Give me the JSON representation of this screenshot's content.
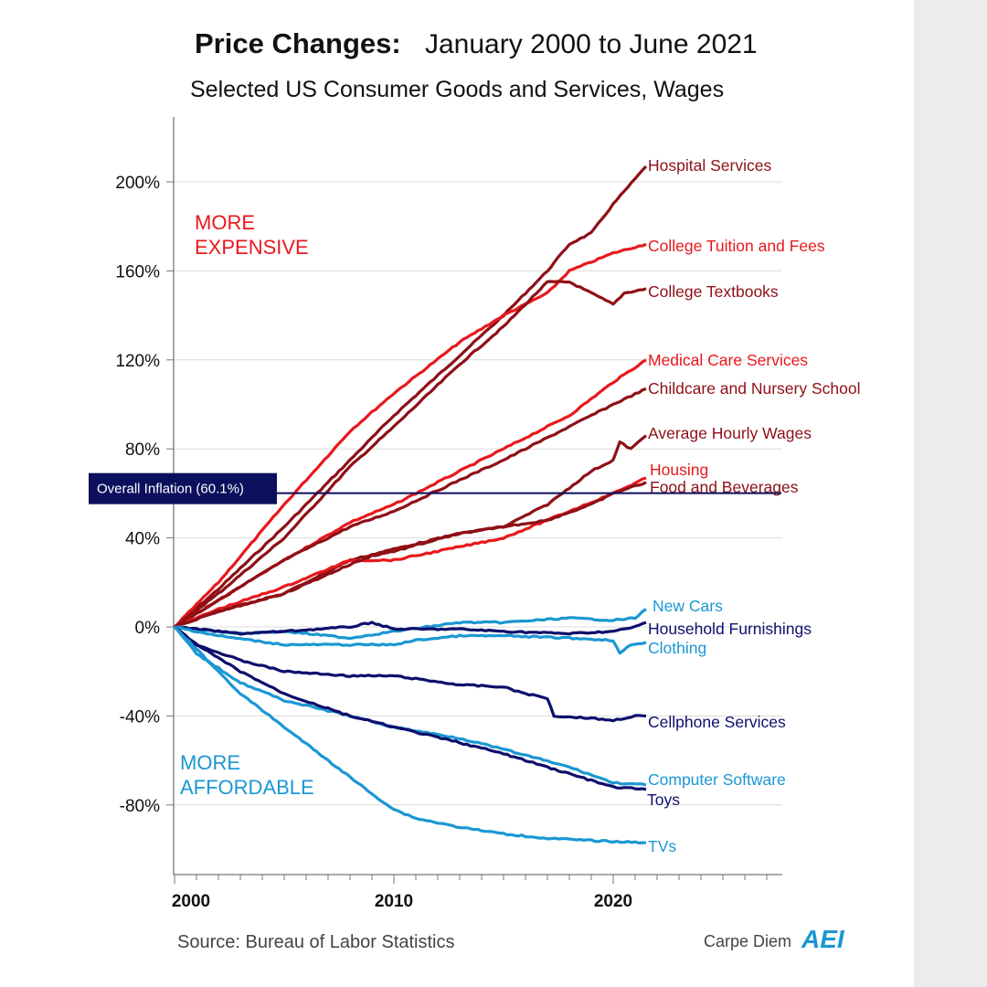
{
  "chart_data": {
    "type": "line",
    "title_bold": "Price Changes:",
    "title_rest": "January 2000 to June 2021",
    "subtitle": "Selected US Consumer Goods and Services, Wages",
    "xlabel": "",
    "ylabel": "",
    "xlim": [
      2000,
      2027.7
    ],
    "ylim": [
      -110,
      230
    ],
    "x_ticks": [
      "2000",
      "2010",
      "2020"
    ],
    "y_ticks": [
      "200%",
      "160%",
      "120%",
      "80%",
      "40%",
      "0%",
      "-40%",
      "-80%"
    ],
    "y_tick_values": [
      200,
      160,
      120,
      80,
      40,
      0,
      -40,
      -80
    ],
    "grid": true,
    "annotations": {
      "more_expensive": [
        "MORE",
        "EXPENSIVE"
      ],
      "more_affordable": [
        "MORE",
        "AFFORDABLE"
      ],
      "inflation_label": "Overall Inflation (60.1%)",
      "inflation_value": 60.1
    },
    "colors": {
      "red": "#e8181d",
      "dark_red": "#8e1016",
      "navy": "#0d0f6b",
      "light_blue": "#1b97d3",
      "inflation": "#0b0f5c"
    },
    "series": [
      {
        "name": "Hospital Services",
        "color": "dark_red",
        "points": [
          [
            2000,
            0
          ],
          [
            2002,
            17
          ],
          [
            2005,
            45
          ],
          [
            2008,
            75
          ],
          [
            2010,
            95
          ],
          [
            2013,
            122
          ],
          [
            2015,
            140
          ],
          [
            2017,
            160
          ],
          [
            2018,
            172
          ],
          [
            2019,
            177
          ],
          [
            2020,
            190
          ],
          [
            2021.5,
            207
          ]
        ]
      },
      {
        "name": "College Tuition and Fees",
        "color": "red",
        "points": [
          [
            2000,
            0
          ],
          [
            2002,
            20
          ],
          [
            2005,
            55
          ],
          [
            2008,
            88
          ],
          [
            2010,
            105
          ],
          [
            2013,
            128
          ],
          [
            2015,
            140
          ],
          [
            2017,
            150
          ],
          [
            2018,
            160
          ],
          [
            2020,
            168
          ],
          [
            2021.5,
            172
          ]
        ]
      },
      {
        "name": "College Textbooks",
        "color": "dark_red",
        "points": [
          [
            2000,
            0
          ],
          [
            2002,
            15
          ],
          [
            2005,
            40
          ],
          [
            2008,
            72
          ],
          [
            2010,
            90
          ],
          [
            2013,
            118
          ],
          [
            2015,
            135
          ],
          [
            2017,
            155
          ],
          [
            2018,
            155
          ],
          [
            2019,
            150
          ],
          [
            2020,
            145
          ],
          [
            2020.5,
            150
          ],
          [
            2021.5,
            152
          ]
        ]
      },
      {
        "name": "Medical Care Services",
        "color": "red",
        "points": [
          [
            2000,
            0
          ],
          [
            2002,
            12
          ],
          [
            2005,
            30
          ],
          [
            2008,
            47
          ],
          [
            2010,
            55
          ],
          [
            2013,
            70
          ],
          [
            2015,
            80
          ],
          [
            2018,
            95
          ],
          [
            2020,
            110
          ],
          [
            2021.5,
            120
          ]
        ]
      },
      {
        "name": "Childcare and Nursery School",
        "color": "dark_red",
        "points": [
          [
            2000,
            0
          ],
          [
            2002,
            12
          ],
          [
            2005,
            30
          ],
          [
            2008,
            45
          ],
          [
            2010,
            52
          ],
          [
            2013,
            66
          ],
          [
            2015,
            75
          ],
          [
            2018,
            90
          ],
          [
            2020,
            100
          ],
          [
            2021.5,
            107
          ]
        ]
      },
      {
        "name": "Average Hourly Wages",
        "color": "dark_red",
        "points": [
          [
            2000,
            0
          ],
          [
            2002,
            7
          ],
          [
            2005,
            15
          ],
          [
            2008,
            30
          ],
          [
            2010,
            35
          ],
          [
            2013,
            42
          ],
          [
            2015,
            45
          ],
          [
            2017,
            55
          ],
          [
            2019,
            70
          ],
          [
            2020,
            75
          ],
          [
            2020.3,
            83
          ],
          [
            2020.8,
            80
          ],
          [
            2021.5,
            86
          ]
        ]
      },
      {
        "name": "Housing",
        "color": "red",
        "points": [
          [
            2000,
            0
          ],
          [
            2002,
            8
          ],
          [
            2005,
            18
          ],
          [
            2007,
            26
          ],
          [
            2008,
            30
          ],
          [
            2010,
            30
          ],
          [
            2013,
            36
          ],
          [
            2015,
            40
          ],
          [
            2018,
            52
          ],
          [
            2020,
            60
          ],
          [
            2021.5,
            67
          ]
        ]
      },
      {
        "name": "Food and Beverages",
        "color": "dark_red",
        "points": [
          [
            2000,
            0
          ],
          [
            2002,
            7
          ],
          [
            2005,
            15
          ],
          [
            2008,
            28
          ],
          [
            2009,
            32
          ],
          [
            2010,
            34
          ],
          [
            2013,
            42
          ],
          [
            2015,
            45
          ],
          [
            2017,
            48
          ],
          [
            2019,
            55
          ],
          [
            2020,
            60
          ],
          [
            2021.5,
            65
          ]
        ]
      },
      {
        "name": "New Cars",
        "color": "light_blue",
        "points": [
          [
            2000,
            0
          ],
          [
            2003,
            -3
          ],
          [
            2005,
            -2
          ],
          [
            2008,
            -5
          ],
          [
            2010,
            -2
          ],
          [
            2013,
            2
          ],
          [
            2015,
            2
          ],
          [
            2018,
            4
          ],
          [
            2020,
            3
          ],
          [
            2021,
            4
          ],
          [
            2021.5,
            8
          ]
        ]
      },
      {
        "name": "Household Furnishings",
        "color": "navy",
        "points": [
          [
            2000,
            0
          ],
          [
            2003,
            -3
          ],
          [
            2005,
            -2
          ],
          [
            2008,
            0
          ],
          [
            2009,
            2
          ],
          [
            2010,
            -1
          ],
          [
            2013,
            -1
          ],
          [
            2015,
            -2
          ],
          [
            2018,
            -3
          ],
          [
            2020,
            -2
          ],
          [
            2021,
            0
          ],
          [
            2021.5,
            2
          ]
        ]
      },
      {
        "name": "Clothing",
        "color": "light_blue",
        "points": [
          [
            2000,
            0
          ],
          [
            2002,
            -4
          ],
          [
            2005,
            -8
          ],
          [
            2008,
            -8
          ],
          [
            2010,
            -8
          ],
          [
            2011,
            -6
          ],
          [
            2013,
            -4
          ],
          [
            2015,
            -4
          ],
          [
            2018,
            -5
          ],
          [
            2020,
            -6
          ],
          [
            2020.3,
            -12
          ],
          [
            2020.8,
            -8
          ],
          [
            2021.5,
            -7
          ]
        ]
      },
      {
        "name": "Cellphone Services",
        "color": "navy",
        "points": [
          [
            2000,
            0
          ],
          [
            2001,
            -8
          ],
          [
            2003,
            -15
          ],
          [
            2005,
            -20
          ],
          [
            2008,
            -22
          ],
          [
            2010,
            -22
          ],
          [
            2013,
            -26
          ],
          [
            2015,
            -27
          ],
          [
            2016,
            -30
          ],
          [
            2017,
            -32
          ],
          [
            2017.3,
            -40
          ],
          [
            2019,
            -41
          ],
          [
            2020,
            -42
          ],
          [
            2021,
            -40
          ],
          [
            2021.5,
            -40
          ]
        ]
      },
      {
        "name": "Computer Software",
        "color": "light_blue",
        "points": [
          [
            2000,
            0
          ],
          [
            2001,
            -12
          ],
          [
            2003,
            -25
          ],
          [
            2005,
            -33
          ],
          [
            2008,
            -40
          ],
          [
            2010,
            -45
          ],
          [
            2013,
            -50
          ],
          [
            2015,
            -55
          ],
          [
            2018,
            -63
          ],
          [
            2020,
            -70
          ],
          [
            2021.5,
            -71
          ]
        ]
      },
      {
        "name": "Toys",
        "color": "navy",
        "points": [
          [
            2000,
            0
          ],
          [
            2001,
            -8
          ],
          [
            2003,
            -20
          ],
          [
            2005,
            -30
          ],
          [
            2008,
            -40
          ],
          [
            2010,
            -45
          ],
          [
            2013,
            -52
          ],
          [
            2015,
            -57
          ],
          [
            2018,
            -66
          ],
          [
            2020,
            -72
          ],
          [
            2021.5,
            -73
          ]
        ]
      },
      {
        "name": "TVs",
        "color": "light_blue",
        "points": [
          [
            2000,
            0
          ],
          [
            2001,
            -10
          ],
          [
            2003,
            -30
          ],
          [
            2005,
            -45
          ],
          [
            2007,
            -60
          ],
          [
            2009,
            -75
          ],
          [
            2010,
            -82
          ],
          [
            2011,
            -86
          ],
          [
            2013,
            -90
          ],
          [
            2015,
            -93
          ],
          [
            2017,
            -95
          ],
          [
            2019,
            -96
          ],
          [
            2021.5,
            -97
          ]
        ]
      }
    ],
    "source": "Source: Bureau of Labor Statistics",
    "branding": "Carpe Diem",
    "logo": "AEI"
  }
}
